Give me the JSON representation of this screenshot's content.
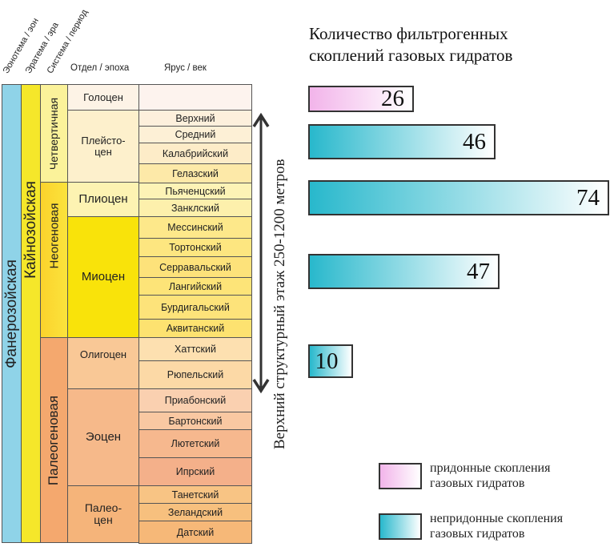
{
  "headers": {
    "eonothem": "Эонотема / эон",
    "erathem": "Эратема / эра",
    "system": "Система / период",
    "series": "Отдел / эпоха",
    "stage": "Ярус / век"
  },
  "eon": "Фанерозойская",
  "era": "Кайнозойская",
  "periods": [
    "Четвертичная",
    "Неогеновая",
    "Палеогеновая"
  ],
  "epochs": [
    "Голоцен",
    "Плейсто-\nцен",
    "Плиоцен",
    "Миоцен",
    "Олигоцен",
    "Эоцен",
    "Палео-\nцен"
  ],
  "stages": [
    "",
    "Верхний",
    "Средний",
    "Калабрийский",
    "Гелазский",
    "Пьяченцский",
    "Занклский",
    "Мессинский",
    "Тортонский",
    "Серравальский",
    "Лангийский",
    "Бурдигальский",
    "Аквитанский",
    "Хаттский",
    "Рюпельский",
    "Приабонский",
    "Бартонский",
    "Лютетский",
    "Ипрский",
    "Танетский",
    "Зеландский",
    "Датский"
  ],
  "arrow_label": "Верхний структурный этаж 250-1200 метров",
  "colors": {
    "eon": "#8fd3e8",
    "era": "#f5e72a",
    "quaternary": "#fbf29a",
    "neogene": "#fbd32c",
    "paleogene": "#f4a86e",
    "bottom_start": "#f2b4ea",
    "nonbottom_start": "#28b8cc",
    "bar_end": "#ffffff"
  },
  "chart_data": {
    "type": "bar",
    "orientation": "horizontal",
    "title": "Количество фильтрогенных скоплений газовых гидратов",
    "title_lines": [
      "Количество фильтрогенных",
      "скоплений газовых гидратов"
    ],
    "categories": [
      "Голоцен",
      "Плейстоцен",
      "Плиоцен",
      "Миоцен",
      "Олигоцен"
    ],
    "series": [
      {
        "name": "придонные скопления газовых гидратов",
        "values": [
          26,
          null,
          null,
          null,
          null
        ]
      },
      {
        "name": "непридонные скопления газовых гидратов",
        "values": [
          null,
          46,
          74,
          47,
          10
        ]
      }
    ],
    "values": [
      26,
      46,
      74,
      47,
      10
    ],
    "labels": [
      "26",
      "46",
      "74",
      "47",
      "10"
    ],
    "xlim": [
      0,
      74
    ],
    "legend": [
      {
        "line1": "придонные скопления",
        "line2": "газовых гидратов"
      },
      {
        "line1": "непридонные скопления",
        "line2": "газовых гидратов"
      }
    ],
    "legend_position": "bottom-right"
  }
}
